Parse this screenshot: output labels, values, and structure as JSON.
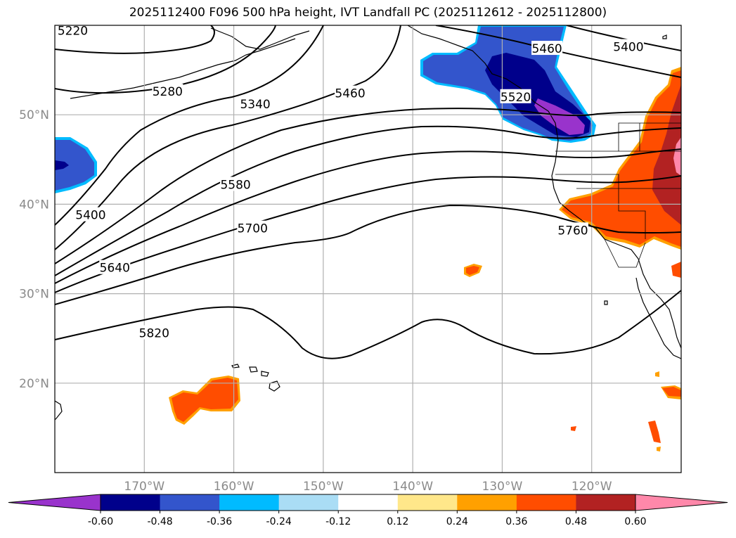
{
  "title": "2025112400 F096 500 hPa height, IVT Landfall PC (2025112612 - 2025112800)",
  "chart_data": {
    "type": "contour-map",
    "title": "2025112400 F096 500 hPa height, IVT Landfall PC (2025112612 - 2025112800)",
    "lon_range": [
      -180,
      -110
    ],
    "lat_range": [
      10,
      60
    ],
    "lon_ticks": [
      "170°W",
      "160°W",
      "150°W",
      "140°W",
      "130°W",
      "120°W"
    ],
    "lon_tick_values": [
      -170,
      -160,
      -150,
      -140,
      -130,
      -120
    ],
    "lat_ticks": [
      "20°N",
      "30°N",
      "40°N",
      "50°N"
    ],
    "lat_tick_values": [
      20,
      30,
      40,
      50
    ],
    "grid": true,
    "height_contours_hPa500": [
      5220,
      5280,
      5340,
      5400,
      5460,
      5520,
      5580,
      5640,
      5700,
      5760,
      5820
    ],
    "contour_labels": [
      {
        "text": "5220",
        "lon": -178,
        "lat": 59.4
      },
      {
        "text": "5280",
        "lon": -167.4,
        "lat": 52.6
      },
      {
        "text": "5340",
        "lon": -157.6,
        "lat": 51.2
      },
      {
        "text": "5460",
        "lon": -147,
        "lat": 52.4
      },
      {
        "text": "5460",
        "lon": -125,
        "lat": 57.4
      },
      {
        "text": "5400",
        "lon": -115.9,
        "lat": 57.6
      },
      {
        "text": "5520",
        "lon": -128.5,
        "lat": 52
      },
      {
        "text": "5400",
        "lon": -176,
        "lat": 38.8
      },
      {
        "text": "5580",
        "lon": -159.8,
        "lat": 42.2
      },
      {
        "text": "5700",
        "lon": -157.9,
        "lat": 37.3
      },
      {
        "text": "5760",
        "lon": -122.1,
        "lat": 37.1
      },
      {
        "text": "5640",
        "lon": -173.3,
        "lat": 32.9
      },
      {
        "text": "5820",
        "lon": -168.9,
        "lat": 25.6
      }
    ],
    "colorbar": {
      "ticks": [
        "-0.60",
        "-0.48",
        "-0.36",
        "-0.24",
        "-0.12",
        "0.12",
        "0.24",
        "0.36",
        "0.48",
        "0.60"
      ],
      "extend": "both",
      "colors": [
        "#9933cc",
        "#00008b",
        "#3355cc",
        "#00bbff",
        "#aaddf5",
        "#ffffff",
        "#ffe78a",
        "#ffa000",
        "#ff4d00",
        "#b22222",
        "#ff88aa"
      ]
    }
  }
}
